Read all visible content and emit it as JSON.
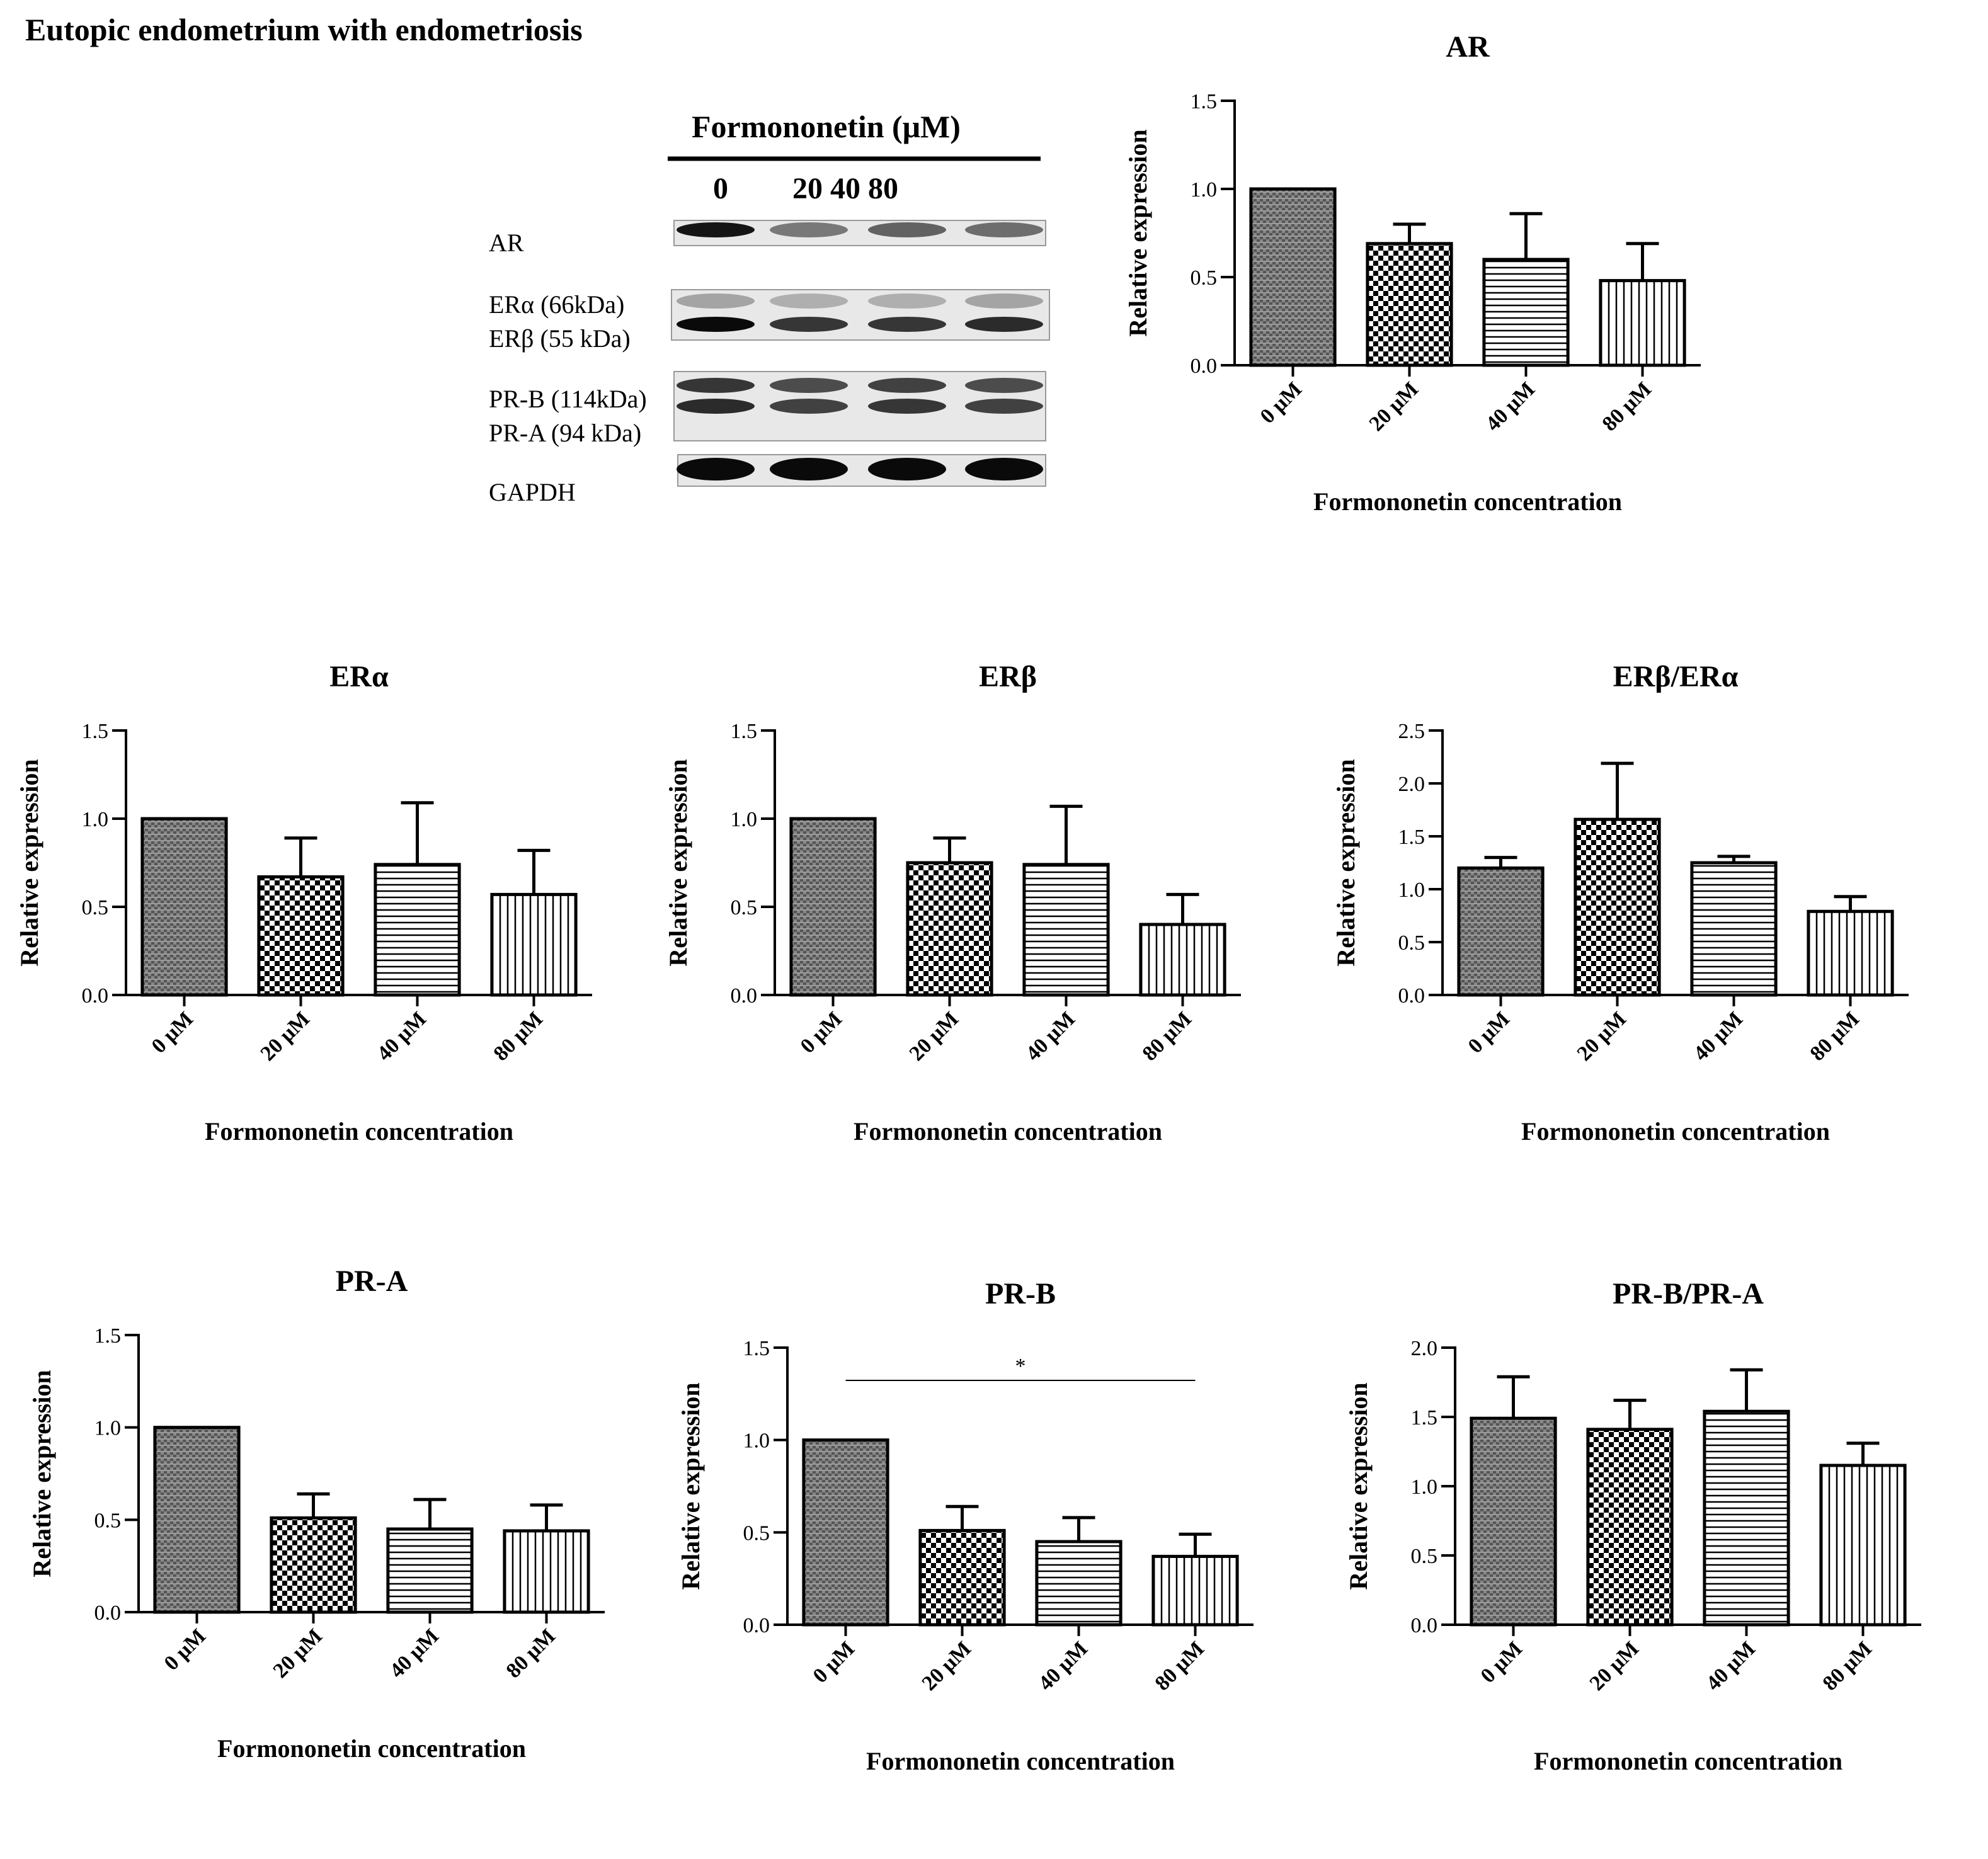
{
  "figure": {
    "title": "Eutopic endometrium with endometriosis"
  },
  "blot": {
    "header": "Formononetin (μM)",
    "lane_first": "0",
    "lane_rest": "20 40 80",
    "labels": [
      "AR",
      "ERα (66kDa)",
      "ERβ (55 kDa)",
      "PR-B (114kDa)",
      "PR-A (94 kDa)",
      "GAPDH"
    ],
    "band_intensity": {
      "AR": [
        0.95,
        0.5,
        0.6,
        0.55
      ],
      "ERa": [
        0.3,
        0.25,
        0.25,
        0.3
      ],
      "ERb": [
        1.0,
        0.8,
        0.8,
        0.85
      ],
      "PRB": [
        0.8,
        0.7,
        0.75,
        0.7
      ],
      "PRA": [
        0.85,
        0.75,
        0.8,
        0.75
      ],
      "GAPDH": [
        1.0,
        1.0,
        1.0,
        1.0
      ]
    }
  },
  "colors": {
    "bar_edge": "#000000",
    "pattern_0uM": "#3a3a3a",
    "pattern_20uM": "#000000",
    "pattern_40uM": "#000000",
    "pattern_80uM": "#000000"
  },
  "chart_data": [
    {
      "id": "AR",
      "type": "bar",
      "title": "AR",
      "categories": [
        "0 μM",
        "20 μM",
        "40 μM",
        "80 μM"
      ],
      "values": [
        1.0,
        0.69,
        0.6,
        0.48
      ],
      "errors": [
        0,
        0.11,
        0.26,
        0.21
      ],
      "xlabel": "Formononetin concentration",
      "ylabel": "Relative expression",
      "ylim": [
        0,
        1.5
      ],
      "yticks": [
        "0.0",
        "0.5",
        "1.0",
        "1.5"
      ]
    },
    {
      "id": "ERa",
      "type": "bar",
      "title": "ERα",
      "categories": [
        "0 μM",
        "20 μM",
        "40 μM",
        "80 μM"
      ],
      "values": [
        1.0,
        0.67,
        0.74,
        0.57
      ],
      "errors": [
        0,
        0.22,
        0.35,
        0.25
      ],
      "xlabel": "Formononetin concentration",
      "ylabel": "Relative expression",
      "ylim": [
        0,
        1.5
      ],
      "yticks": [
        "0.0",
        "0.5",
        "1.0",
        "1.5"
      ]
    },
    {
      "id": "ERb",
      "type": "bar",
      "title": "ERβ",
      "categories": [
        "0 μM",
        "20 μM",
        "40 μM",
        "80 μM"
      ],
      "values": [
        1.0,
        0.75,
        0.74,
        0.4
      ],
      "errors": [
        0,
        0.14,
        0.33,
        0.17
      ],
      "xlabel": "Formononetin concentration",
      "ylabel": "Relative expression",
      "ylim": [
        0,
        1.5
      ],
      "yticks": [
        "0.0",
        "0.5",
        "1.0",
        "1.5"
      ]
    },
    {
      "id": "ERbERa",
      "type": "bar",
      "title": "ERβ/ERα",
      "categories": [
        "0 μM",
        "20 μM",
        "40 μM",
        "80 μM"
      ],
      "values": [
        1.2,
        1.66,
        1.25,
        0.79
      ],
      "errors": [
        0.1,
        0.53,
        0.06,
        0.14
      ],
      "xlabel": "Formononetin concentration",
      "ylabel": "Relative expression",
      "ylim": [
        0,
        2.5
      ],
      "yticks": [
        "0.0",
        "0.5",
        "1.0",
        "1.5",
        "2.0",
        "2.5"
      ]
    },
    {
      "id": "PRA",
      "type": "bar",
      "title": "PR-A",
      "categories": [
        "0 μM",
        "20 μM",
        "40 μM",
        "80 μM"
      ],
      "values": [
        1.0,
        0.51,
        0.45,
        0.44
      ],
      "errors": [
        0,
        0.13,
        0.16,
        0.14
      ],
      "xlabel": "Formononetin concentration",
      "ylabel": "Relative expression",
      "ylim": [
        0,
        1.5
      ],
      "yticks": [
        "0.0",
        "0.5",
        "1.0",
        "1.5"
      ]
    },
    {
      "id": "PRB",
      "type": "bar",
      "title": "PR-B",
      "categories": [
        "0 μM",
        "20 μM",
        "40 μM",
        "80 μM"
      ],
      "values": [
        1.0,
        0.51,
        0.45,
        0.37
      ],
      "errors": [
        0,
        0.13,
        0.13,
        0.12
      ],
      "xlabel": "Formononetin concentration",
      "ylabel": "Relative expression",
      "ylim": [
        0,
        1.5
      ],
      "yticks": [
        "0.0",
        "0.5",
        "1.0",
        "1.5"
      ],
      "annotation": "*"
    },
    {
      "id": "PRBPRA",
      "type": "bar",
      "title": "PR-B/PR-A",
      "categories": [
        "0 μM",
        "20 μM",
        "40 μM",
        "80 μM"
      ],
      "values": [
        1.49,
        1.41,
        1.54,
        1.15
      ],
      "errors": [
        0.3,
        0.21,
        0.3,
        0.16
      ],
      "xlabel": "Formononetin concentration",
      "ylabel": "Relative expression",
      "ylim": [
        0,
        2.0
      ],
      "yticks": [
        "0.0",
        "0.5",
        "1.0",
        "1.5",
        "2.0"
      ]
    }
  ]
}
